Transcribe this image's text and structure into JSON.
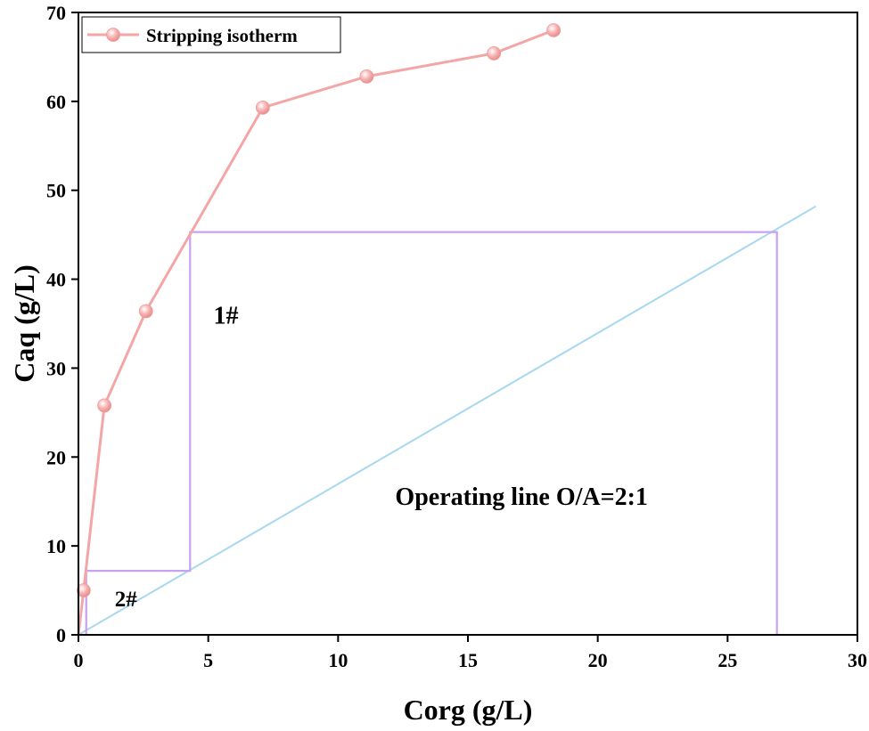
{
  "chart_data": {
    "type": "line",
    "xlabel": "Corg (g/L)",
    "ylabel": "Caq (g/L)",
    "xlim": [
      0,
      30
    ],
    "ylim": [
      0,
      70
    ],
    "xticks": [
      0,
      5,
      10,
      15,
      20,
      25,
      30
    ],
    "yticks": [
      0,
      10,
      20,
      30,
      40,
      50,
      60,
      70
    ],
    "grid": false,
    "legend_position": "top-left",
    "series": [
      {
        "name": "Stripping isotherm",
        "color": "#f4a6a6",
        "marker": "circle",
        "x": [
          0.0,
          0.2,
          1.0,
          2.6,
          7.1,
          11.1,
          16.0,
          18.3
        ],
        "y": [
          0.0,
          5.0,
          25.8,
          36.4,
          59.3,
          62.8,
          65.4,
          68.0
        ]
      }
    ],
    "operating_line": {
      "color": "#a8d8f0",
      "x": [
        0,
        28.4
      ],
      "y": [
        0,
        48.2
      ]
    },
    "stage_steps": {
      "color": "#c8a2f0",
      "x": [
        0.3,
        0.3,
        4.3,
        4.3,
        26.9,
        26.9
      ],
      "y": [
        0,
        7.2,
        7.2,
        45.3,
        45.3,
        0
      ]
    },
    "annotations": [
      {
        "id": "stage-1",
        "text": "1#",
        "x": 5.2,
        "y": 35.0
      },
      {
        "id": "stage-2",
        "text": "2#",
        "x": 1.4,
        "y": 3.2
      },
      {
        "id": "operating-line",
        "text": "Operating line O/A=2:1",
        "x": 12.2,
        "y": 14.6
      }
    ]
  }
}
